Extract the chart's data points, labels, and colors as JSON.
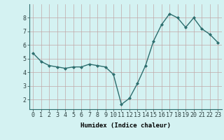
{
  "x": [
    0,
    1,
    2,
    3,
    4,
    5,
    6,
    7,
    8,
    9,
    10,
    11,
    12,
    13,
    14,
    15,
    16,
    17,
    18,
    19,
    20,
    21,
    22,
    23
  ],
  "y": [
    5.4,
    4.8,
    4.5,
    4.4,
    4.3,
    4.4,
    4.4,
    4.6,
    4.5,
    4.4,
    3.85,
    1.65,
    2.1,
    3.2,
    4.5,
    6.3,
    7.5,
    8.3,
    8.0,
    7.3,
    8.0,
    7.2,
    6.8,
    6.2
  ],
  "line_color": "#2d6e6e",
  "marker": "D",
  "marker_size": 2.0,
  "bg_color": "#d4f2f2",
  "grid_color": "#c0a8a8",
  "xlabel": "Humidex (Indice chaleur)",
  "xlim": [
    -0.5,
    23.5
  ],
  "ylim": [
    1.3,
    9.0
  ],
  "yticks": [
    2,
    3,
    4,
    5,
    6,
    7,
    8
  ],
  "xticks": [
    0,
    1,
    2,
    3,
    4,
    5,
    6,
    7,
    8,
    9,
    10,
    11,
    12,
    13,
    14,
    15,
    16,
    17,
    18,
    19,
    20,
    21,
    22,
    23
  ],
  "xlabel_fontsize": 6.5,
  "tick_fontsize": 6.0,
  "linewidth": 1.0
}
